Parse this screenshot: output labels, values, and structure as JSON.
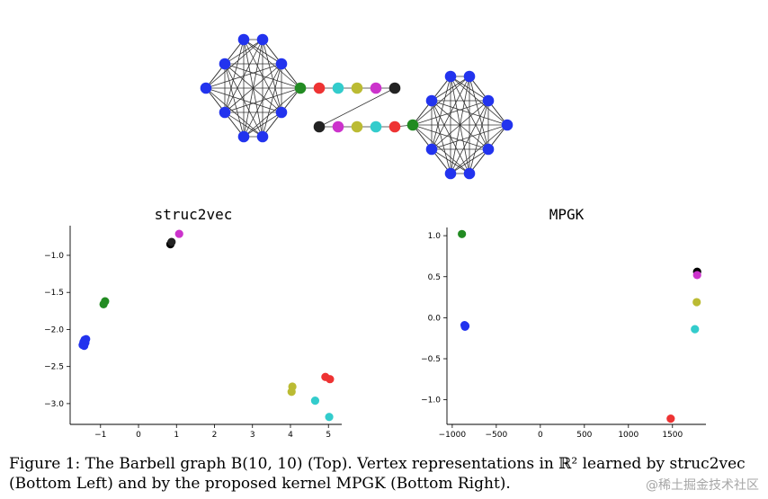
{
  "figure": {
    "caption_line1": "Figure 1: The Barbell graph B(10, 10) (Top).  Vertex representations in ℝ² learned by struc2vec",
    "caption_line2": "(Bottom Left) and by the proposed kernel MPGK (Bottom Right).",
    "watermark": "@稀土掘金技术社区"
  },
  "graph": {
    "name": "Barbell graph B(10, 10)",
    "colors": {
      "clique": "#2233ee",
      "green": "#228b22",
      "red": "#ee3333",
      "cyan": "#33cccc",
      "yellow": "#bbbb33",
      "magenta": "#cc33cc",
      "black": "#222222"
    }
  },
  "chart_data": [
    {
      "type": "scatter",
      "title": "struc2vec",
      "xlabel": "",
      "ylabel": "",
      "xlim": [
        -1.8,
        5.35
      ],
      "ylim": [
        -3.28,
        -0.6
      ],
      "xticks": [
        -1,
        0,
        1,
        2,
        3,
        4,
        5
      ],
      "yticks": [
        -1.0,
        -1.5,
        -2.0,
        -2.5,
        -3.0
      ],
      "xtick_labels": [
        "−1",
        "0",
        "1",
        "2",
        "3",
        "4",
        "5"
      ],
      "ytick_labels": [
        "−1.0",
        "−1.5",
        "−2.0",
        "−2.5",
        "−3.0"
      ],
      "points": [
        {
          "x": -1.42,
          "y": -2.14,
          "color": "#2233ee"
        },
        {
          "x": -1.45,
          "y": -2.17,
          "color": "#2233ee"
        },
        {
          "x": -1.4,
          "y": -2.18,
          "color": "#2233ee"
        },
        {
          "x": -1.47,
          "y": -2.21,
          "color": "#2233ee"
        },
        {
          "x": -1.43,
          "y": -2.22,
          "color": "#2233ee"
        },
        {
          "x": -1.38,
          "y": -2.13,
          "color": "#2233ee"
        },
        {
          "x": -0.88,
          "y": -1.62,
          "color": "#228b22"
        },
        {
          "x": -0.92,
          "y": -1.66,
          "color": "#228b22"
        },
        {
          "x": 0.84,
          "y": -0.85,
          "color": "#000000"
        },
        {
          "x": 0.87,
          "y": -0.82,
          "color": "#222222"
        },
        {
          "x": 1.07,
          "y": -0.71,
          "color": "#cc33cc"
        },
        {
          "x": 4.05,
          "y": -2.77,
          "color": "#bbbb33"
        },
        {
          "x": 4.03,
          "y": -2.84,
          "color": "#bbbb33"
        },
        {
          "x": 4.65,
          "y": -2.96,
          "color": "#33cccc"
        },
        {
          "x": 5.02,
          "y": -3.18,
          "color": "#33cccc"
        },
        {
          "x": 4.92,
          "y": -2.64,
          "color": "#ee3333"
        },
        {
          "x": 5.04,
          "y": -2.67,
          "color": "#ee3333"
        }
      ]
    },
    {
      "type": "scatter",
      "title": "MPGK",
      "xlabel": "",
      "ylabel": "",
      "xlim": [
        -1060,
        1880
      ],
      "ylim": [
        -1.3,
        1.1
      ],
      "xticks": [
        -1000,
        -500,
        0,
        500,
        1000,
        1500
      ],
      "yticks": [
        1.0,
        0.5,
        0.0,
        -0.5,
        -1.0
      ],
      "xtick_labels": [
        "−1000",
        "−500",
        "0",
        "500",
        "1000",
        "1500"
      ],
      "ytick_labels": [
        "1.0",
        "0.5",
        "0.0",
        "−0.5",
        "−1.0"
      ],
      "points": [
        {
          "x": -890,
          "y": 1.02,
          "color": "#228b22"
        },
        {
          "x": -860,
          "y": -0.09,
          "color": "#2233ee"
        },
        {
          "x": -850,
          "y": -0.1,
          "color": "#2233ee"
        },
        {
          "x": -855,
          "y": -0.11,
          "color": "#2233ee"
        },
        {
          "x": 1780,
          "y": 0.56,
          "color": "#000000"
        },
        {
          "x": 1780,
          "y": 0.52,
          "color": "#cc33cc"
        },
        {
          "x": 1775,
          "y": 0.19,
          "color": "#bbbb33"
        },
        {
          "x": 1755,
          "y": -0.14,
          "color": "#33cccc"
        },
        {
          "x": 1480,
          "y": -1.23,
          "color": "#ee3333"
        }
      ]
    }
  ]
}
